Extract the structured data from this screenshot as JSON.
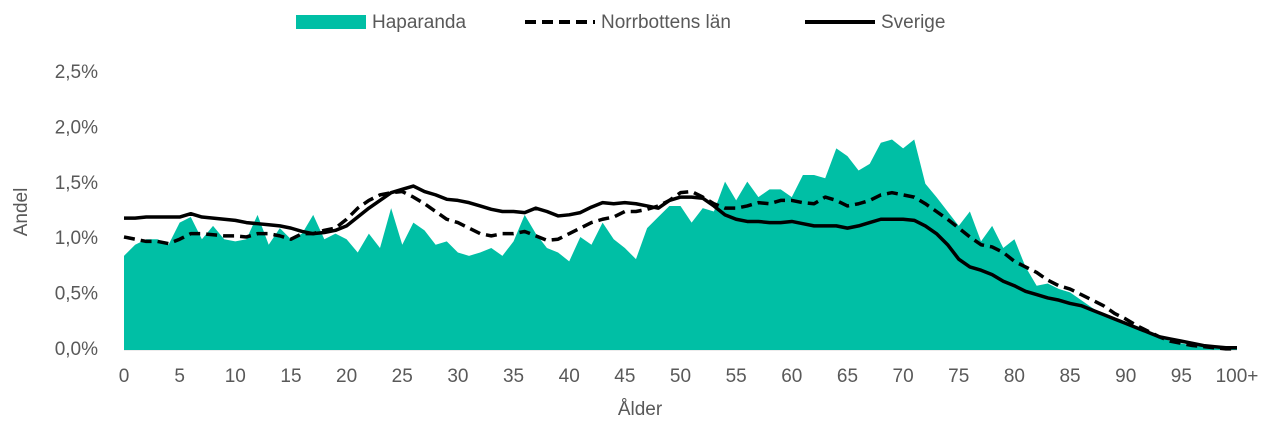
{
  "chart_data": {
    "type": "line",
    "x_label": "Ålder",
    "y_label": "Andel",
    "categories": [
      "0",
      null,
      null,
      null,
      null,
      "5",
      null,
      null,
      null,
      null,
      "10",
      null,
      null,
      null,
      null,
      "15",
      null,
      null,
      null,
      null,
      "20",
      null,
      null,
      null,
      null,
      "25",
      null,
      null,
      null,
      null,
      "30",
      null,
      null,
      null,
      null,
      "35",
      null,
      null,
      null,
      null,
      "40",
      null,
      null,
      null,
      null,
      "45",
      null,
      null,
      null,
      null,
      "50",
      null,
      null,
      null,
      null,
      "55",
      null,
      null,
      null,
      null,
      "60",
      null,
      null,
      null,
      null,
      "65",
      null,
      null,
      null,
      null,
      "70",
      null,
      null,
      null,
      null,
      "75",
      null,
      null,
      null,
      null,
      "80",
      null,
      null,
      null,
      null,
      "85",
      null,
      null,
      null,
      null,
      "90",
      null,
      null,
      null,
      null,
      "95",
      null,
      null,
      null,
      null,
      "100+"
    ],
    "ylim": [
      0,
      2.5
    ],
    "yticks": [
      {
        "value": 0,
        "label": "0,0%"
      },
      {
        "value": 0.5,
        "label": "0,5%"
      },
      {
        "value": 1,
        "label": "1,0%"
      },
      {
        "value": 1.5,
        "label": "1,5%"
      },
      {
        "value": 2,
        "label": "2,0%"
      },
      {
        "value": 2.5,
        "label": "2,5%"
      }
    ],
    "grid": false,
    "legend": "top",
    "series": [
      {
        "name": "Haparanda",
        "type": "area",
        "color": "#00bfa5",
        "values": [
          0.85,
          0.95,
          1.0,
          1.0,
          0.95,
          1.15,
          1.2,
          1.0,
          1.12,
          1.0,
          0.98,
          1.0,
          1.22,
          0.95,
          1.1,
          1.0,
          1.05,
          1.22,
          1.0,
          1.05,
          1.0,
          0.88,
          1.05,
          0.92,
          1.28,
          0.95,
          1.15,
          1.08,
          0.95,
          0.98,
          0.88,
          0.85,
          0.88,
          0.92,
          0.85,
          0.98,
          1.22,
          1.05,
          0.92,
          0.88,
          0.8,
          1.02,
          0.95,
          1.15,
          1.0,
          0.92,
          0.82,
          1.1,
          1.2,
          1.3,
          1.3,
          1.15,
          1.28,
          1.25,
          1.52,
          1.35,
          1.52,
          1.38,
          1.45,
          1.45,
          1.38,
          1.58,
          1.58,
          1.55,
          1.82,
          1.75,
          1.62,
          1.68,
          1.87,
          1.9,
          1.82,
          1.9,
          1.5,
          1.38,
          1.25,
          1.12,
          1.25,
          0.98,
          1.12,
          0.92,
          1.0,
          0.75,
          0.58,
          0.6,
          0.55,
          0.52,
          0.45,
          0.38,
          0.32,
          0.28,
          0.25,
          0.2,
          0.15,
          0.12,
          0.08,
          0.06,
          0.04,
          0.03,
          0.02,
          0.01,
          0.01
        ]
      },
      {
        "name": "Norrbottens län",
        "type": "line",
        "dashed": true,
        "color": "#000000",
        "values": [
          1.02,
          1.0,
          0.98,
          0.98,
          0.96,
          1.0,
          1.05,
          1.05,
          1.04,
          1.03,
          1.03,
          1.02,
          1.05,
          1.05,
          1.03,
          1.0,
          1.05,
          1.05,
          1.08,
          1.1,
          1.18,
          1.28,
          1.35,
          1.4,
          1.42,
          1.43,
          1.38,
          1.32,
          1.25,
          1.18,
          1.15,
          1.1,
          1.05,
          1.03,
          1.05,
          1.05,
          1.07,
          1.03,
          0.99,
          1.0,
          1.05,
          1.1,
          1.15,
          1.18,
          1.2,
          1.25,
          1.25,
          1.27,
          1.3,
          1.35,
          1.42,
          1.43,
          1.38,
          1.32,
          1.28,
          1.28,
          1.3,
          1.33,
          1.32,
          1.35,
          1.35,
          1.33,
          1.32,
          1.38,
          1.35,
          1.3,
          1.32,
          1.35,
          1.4,
          1.42,
          1.4,
          1.38,
          1.32,
          1.25,
          1.18,
          1.1,
          1.02,
          0.95,
          0.93,
          0.88,
          0.8,
          0.75,
          0.7,
          0.63,
          0.58,
          0.55,
          0.5,
          0.45,
          0.4,
          0.33,
          0.28,
          0.22,
          0.17,
          0.12,
          0.08,
          0.06,
          0.04,
          0.03,
          0.02,
          0.01,
          0.01
        ]
      },
      {
        "name": "Sverige",
        "type": "line",
        "dashed": false,
        "color": "#000000",
        "values": [
          1.19,
          1.19,
          1.2,
          1.2,
          1.2,
          1.2,
          1.23,
          1.2,
          1.19,
          1.18,
          1.17,
          1.15,
          1.14,
          1.13,
          1.12,
          1.1,
          1.07,
          1.05,
          1.06,
          1.08,
          1.12,
          1.2,
          1.28,
          1.35,
          1.42,
          1.45,
          1.48,
          1.43,
          1.4,
          1.36,
          1.35,
          1.33,
          1.3,
          1.27,
          1.25,
          1.25,
          1.24,
          1.28,
          1.25,
          1.21,
          1.22,
          1.24,
          1.29,
          1.33,
          1.32,
          1.33,
          1.32,
          1.3,
          1.28,
          1.35,
          1.38,
          1.38,
          1.37,
          1.3,
          1.22,
          1.18,
          1.16,
          1.16,
          1.15,
          1.15,
          1.16,
          1.14,
          1.12,
          1.12,
          1.12,
          1.1,
          1.12,
          1.15,
          1.18,
          1.18,
          1.18,
          1.17,
          1.12,
          1.05,
          0.95,
          0.82,
          0.75,
          0.72,
          0.68,
          0.62,
          0.58,
          0.53,
          0.5,
          0.47,
          0.45,
          0.42,
          0.4,
          0.36,
          0.32,
          0.28,
          0.24,
          0.2,
          0.16,
          0.12,
          0.1,
          0.08,
          0.06,
          0.04,
          0.03,
          0.02,
          0.02
        ]
      }
    ]
  }
}
